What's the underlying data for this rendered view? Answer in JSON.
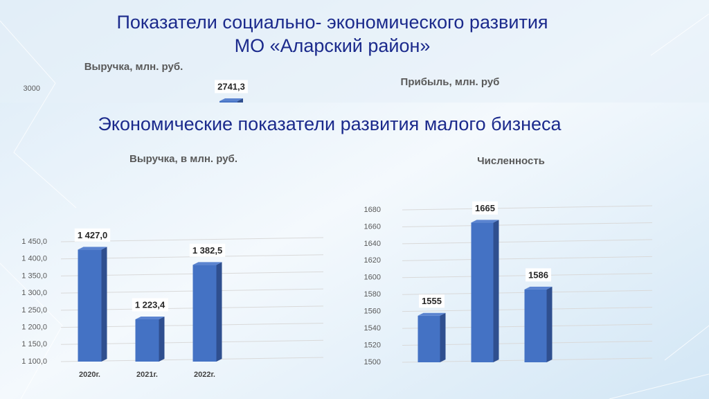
{
  "slide": {
    "title_lines": [
      "Показатели социально- экономического развития",
      "МО «Аларский район»"
    ],
    "section_title": "Экономические показатели развития малого бизнеса"
  },
  "chart_data": [
    {
      "type": "bar",
      "title": "Выручка, млн. руб.",
      "categories": [
        null
      ],
      "values": [
        2741.3
      ],
      "value_labels": [
        "2741,3"
      ],
      "color": "#4472c4",
      "ylim": [
        0,
        3000
      ],
      "yticks": [
        3000
      ],
      "grid": false
    },
    {
      "type": "bar",
      "title": "Прибыль, млн. руб"
    },
    {
      "type": "bar",
      "title": "Выручка, в млн. руб.",
      "categories": [
        "2020г.",
        "2021г.",
        "2022г."
      ],
      "values": [
        1427.0,
        1223.4,
        1382.5
      ],
      "value_labels": [
        "1 427,0",
        "1 223,4",
        "1 382,5"
      ],
      "color": "#4472c4",
      "ylim": [
        1100,
        1450
      ],
      "yticks": [
        {
          "value": 1100,
          "label": "1 100,0"
        },
        {
          "value": 1150,
          "label": "1 150,0"
        },
        {
          "value": 1200,
          "label": "1 200,0"
        },
        {
          "value": 1250,
          "label": "1 250,0"
        },
        {
          "value": 1300,
          "label": "1 300,0"
        },
        {
          "value": 1350,
          "label": "1 350,0"
        },
        {
          "value": 1400,
          "label": "1 400,0"
        },
        {
          "value": 1450,
          "label": "1 450,0"
        }
      ],
      "grid": true
    },
    {
      "type": "bar",
      "title": "Численность",
      "categories": [
        null,
        null,
        null
      ],
      "values": [
        1555,
        1665,
        1586
      ],
      "color": "#4472c4",
      "ylim": [
        1500,
        1680
      ],
      "yticks": [
        1500,
        1520,
        1540,
        1560,
        1580,
        1600,
        1620,
        1640,
        1660,
        1680
      ],
      "grid": true
    }
  ]
}
